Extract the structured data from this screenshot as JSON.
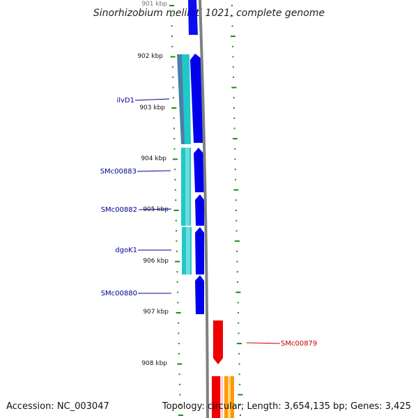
{
  "title": "Sinorhizobium meliloti 1021, complete genome",
  "footer": {
    "accession": "Accession: NC_003047",
    "topology": "Topology: circular; Length: 3,654,135 bp; Genes: 3,425"
  },
  "colors": {
    "backbone": "#808080",
    "tick": "#1a8a1a",
    "forward_gene": "#0000ee",
    "forward_label": "#000099",
    "reverse_gene": "#ee0000",
    "reverse_label": "#cc0000",
    "other_gene": "#ff9900",
    "track_cyan": "#20c8c8",
    "track_steel": "#4a7fa8"
  },
  "axis": {
    "unit": "kbp",
    "ticks": [
      "901 kbp",
      "902 kbp",
      "903 kbp",
      "904 kbp",
      "905 kbp",
      "906 kbp",
      "907 kbp",
      "908 kbp"
    ]
  },
  "genes": [
    {
      "label": "ilvD1",
      "strand": "forward"
    },
    {
      "label": "SMc00883",
      "strand": "forward"
    },
    {
      "label": "SMc00882",
      "strand": "forward"
    },
    {
      "label": "dgoK1",
      "strand": "forward"
    },
    {
      "label": "SMc00880",
      "strand": "forward"
    },
    {
      "label": "SMc00879",
      "strand": "reverse"
    }
  ]
}
